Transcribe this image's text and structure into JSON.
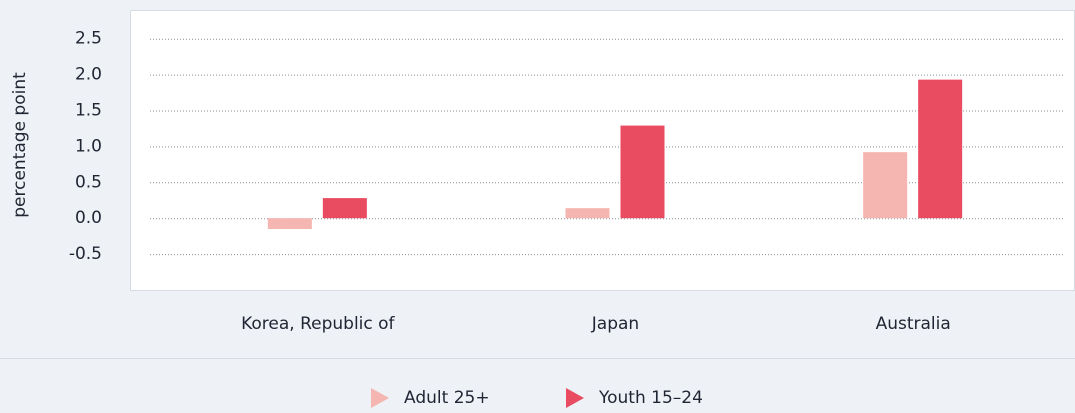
{
  "chart_data": {
    "type": "bar",
    "ylabel": "percentage point",
    "categories": [
      "Korea, Republic of",
      "Japan",
      "Australia"
    ],
    "series": [
      {
        "name": "Adult 25+",
        "color": "#f5b5b0",
        "values": [
          -0.15,
          0.14,
          0.92
        ]
      },
      {
        "name": "Youth 15–24",
        "color": "#e94b60",
        "values": [
          0.28,
          1.29,
          1.93
        ]
      }
    ],
    "ylim": [
      -1.0,
      2.9
    ],
    "yticks": [
      -0.5,
      {
        "value": 0,
        "label": "0.0"
      },
      0.5,
      {
        "value": 1,
        "label": "1.0"
      },
      1.5,
      {
        "value": 2,
        "label": "2.0"
      },
      2.5
    ],
    "grid": true,
    "legend": "bottom"
  }
}
